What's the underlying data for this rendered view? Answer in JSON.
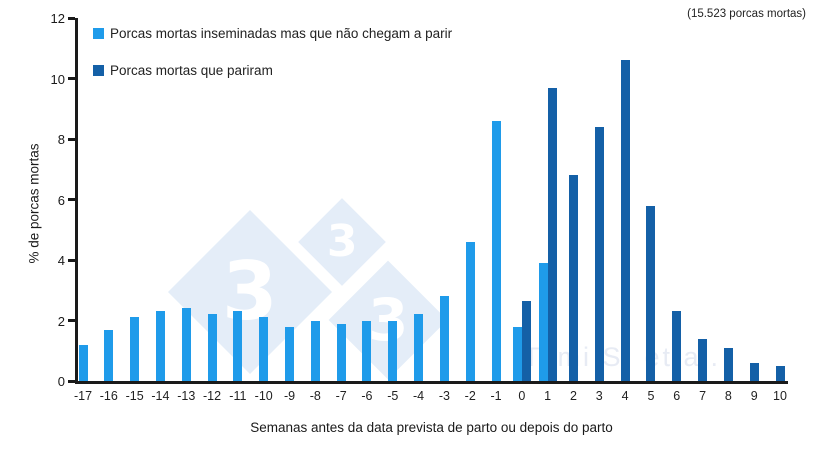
{
  "annotation": {
    "text": "(15.523 porcas mortas)"
  },
  "watermark": {
    "logo_digit": "3",
    "credit": "Tami S. et al."
  },
  "legend": [
    {
      "label": "Porcas mortas inseminadas mas que não chegam a parir",
      "color": "#1f9bea"
    },
    {
      "label": "Porcas mortas que pariram",
      "color": "#1460a7"
    }
  ],
  "chart_data": {
    "type": "bar",
    "title": "",
    "xlabel": "Semanas antes da data prevista de parto ou depois do parto",
    "ylabel": "% de porcas mortas",
    "ylim": [
      0,
      12
    ],
    "yticks": [
      0,
      2,
      4,
      6,
      8,
      10,
      12
    ],
    "grid": false,
    "legend_position": "top-left",
    "annotation_top_right": "(15.523 porcas mortas)",
    "categories": [
      "-17",
      "-16",
      "-15",
      "-14",
      "-13",
      "-12",
      "-11",
      "-10",
      "-9",
      "-8",
      "-7",
      "-6",
      "-5",
      "-4",
      "-3",
      "-2",
      "-1",
      "0",
      "1",
      "2",
      "3",
      "4",
      "5",
      "6",
      "7",
      "8",
      "9",
      "10"
    ],
    "series": [
      {
        "name": "Porcas mortas inseminadas mas que não chegam a parir",
        "color": "#1f9bea",
        "values": [
          1.2,
          1.7,
          2.1,
          2.3,
          2.4,
          2.2,
          2.3,
          2.1,
          1.8,
          2.0,
          1.9,
          2.0,
          2.0,
          2.2,
          2.8,
          4.6,
          8.6,
          1.8,
          3.9,
          null,
          null,
          null,
          null,
          null,
          null,
          null,
          null,
          null
        ]
      },
      {
        "name": "Porcas mortas que pariram",
        "color": "#1460a7",
        "values": [
          null,
          null,
          null,
          null,
          null,
          null,
          null,
          null,
          null,
          null,
          null,
          null,
          null,
          null,
          null,
          null,
          null,
          2.65,
          9.7,
          6.8,
          8.4,
          10.6,
          5.8,
          2.3,
          1.4,
          1.1,
          0.6,
          0.5
        ]
      }
    ]
  }
}
